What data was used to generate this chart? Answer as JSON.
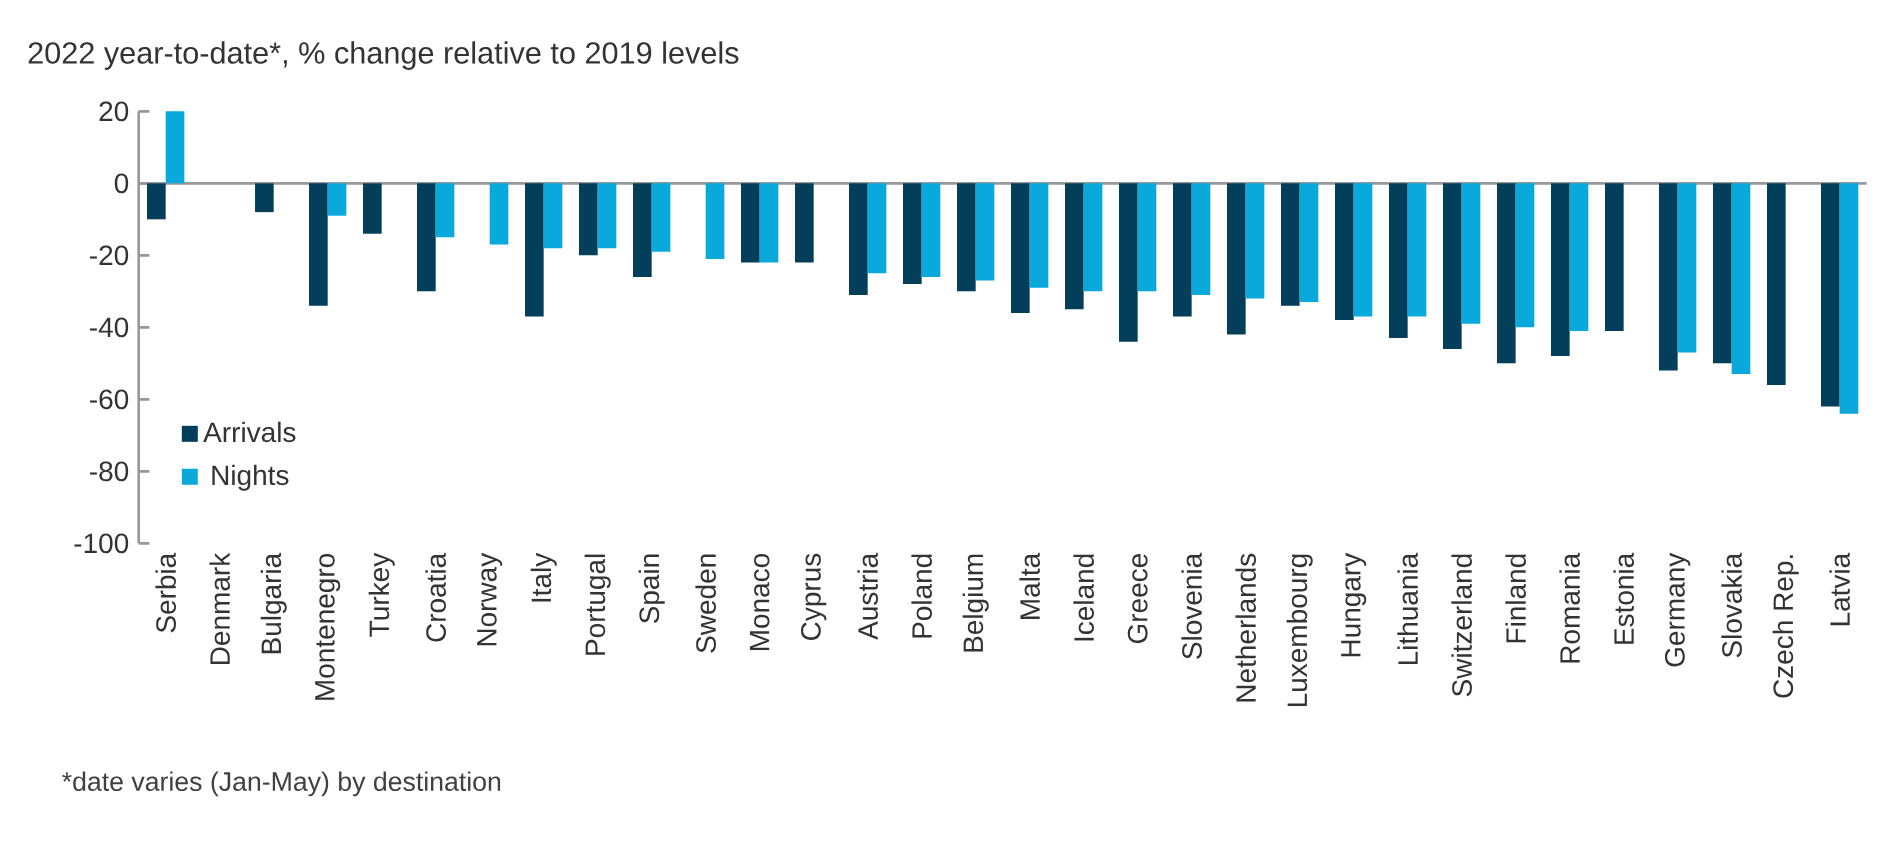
{
  "chart_data": {
    "type": "bar",
    "title": "2022 year-to-date*, % change relative to 2019 levels",
    "categories": [
      "Serbia",
      "Denmark",
      "Bulgaria",
      "Montenegro",
      "Turkey",
      "Croatia",
      "Norway",
      "Italy",
      "Portugal",
      "Spain",
      "Sweden",
      "Monaco",
      "Cyprus",
      "Austria",
      "Poland",
      "Belgium",
      "Malta",
      "Iceland",
      "Greece",
      "Slovenia",
      "Netherlands",
      "Luxembourg",
      "Hungary",
      "Lithuania",
      "Switzerland",
      "Finland",
      "Romania",
      "Estonia",
      "Germany",
      "Slovakia",
      "Czech Rep.",
      "Latvia"
    ],
    "series": [
      {
        "name": "Arrivals",
        "color": "#033e5a",
        "values": [
          -10,
          null,
          -8,
          -34,
          -14,
          -30,
          null,
          -37,
          -20,
          -26,
          null,
          -22,
          -22,
          -31,
          -28,
          -30,
          -36,
          -35,
          -44,
          -37,
          -42,
          -34,
          -38,
          -43,
          -46,
          -50,
          -48,
          -41,
          -52,
          -50,
          -56,
          -62
        ]
      },
      {
        "name": "Nights",
        "color": "#0aa9dc",
        "values": [
          20,
          null,
          null,
          -9,
          null,
          -15,
          -17,
          -18,
          -18,
          -19,
          -21,
          -22,
          null,
          -25,
          -26,
          -27,
          -29,
          -30,
          -30,
          -31,
          -32,
          -33,
          -37,
          -37,
          -39,
          -40,
          -41,
          null,
          -47,
          -53,
          null,
          -64
        ]
      }
    ],
    "ylim": [
      -100,
      20
    ],
    "yticks": [
      -100,
      -80,
      -60,
      -40,
      -20,
      0,
      20
    ],
    "legend": "bottom left",
    "annotations": [
      "*date varies (Jan-May) by destination"
    ]
  }
}
